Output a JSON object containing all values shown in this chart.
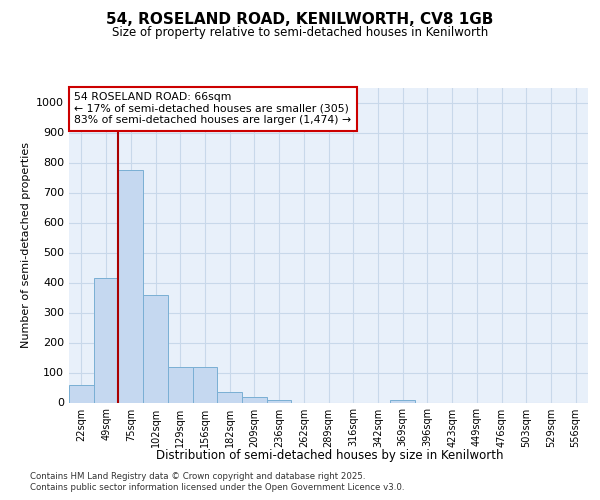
{
  "title1": "54, ROSELAND ROAD, KENILWORTH, CV8 1GB",
  "title2": "Size of property relative to semi-detached houses in Kenilworth",
  "xlabel": "Distribution of semi-detached houses by size in Kenilworth",
  "ylabel": "Number of semi-detached properties",
  "categories": [
    "22sqm",
    "49sqm",
    "75sqm",
    "102sqm",
    "129sqm",
    "156sqm",
    "182sqm",
    "209sqm",
    "236sqm",
    "262sqm",
    "289sqm",
    "316sqm",
    "342sqm",
    "369sqm",
    "396sqm",
    "423sqm",
    "449sqm",
    "476sqm",
    "503sqm",
    "529sqm",
    "556sqm"
  ],
  "values": [
    60,
    415,
    775,
    360,
    120,
    120,
    35,
    20,
    10,
    0,
    0,
    0,
    0,
    10,
    0,
    0,
    0,
    0,
    0,
    0,
    0
  ],
  "bar_color": "#c5d8f0",
  "bar_edge_color": "#7aafd4",
  "grid_color": "#c8d8ea",
  "bg_color": "#e8f0fa",
  "vline_color": "#aa0000",
  "vline_x": 1.5,
  "annotation_title": "54 ROSELAND ROAD: 66sqm",
  "annotation_line1": "← 17% of semi-detached houses are smaller (305)",
  "annotation_line2": "83% of semi-detached houses are larger (1,474) →",
  "annotation_box_color": "#cc0000",
  "footer1": "Contains HM Land Registry data © Crown copyright and database right 2025.",
  "footer2": "Contains public sector information licensed under the Open Government Licence v3.0.",
  "ylim": [
    0,
    1050
  ],
  "yticks": [
    0,
    100,
    200,
    300,
    400,
    500,
    600,
    700,
    800,
    900,
    1000
  ]
}
